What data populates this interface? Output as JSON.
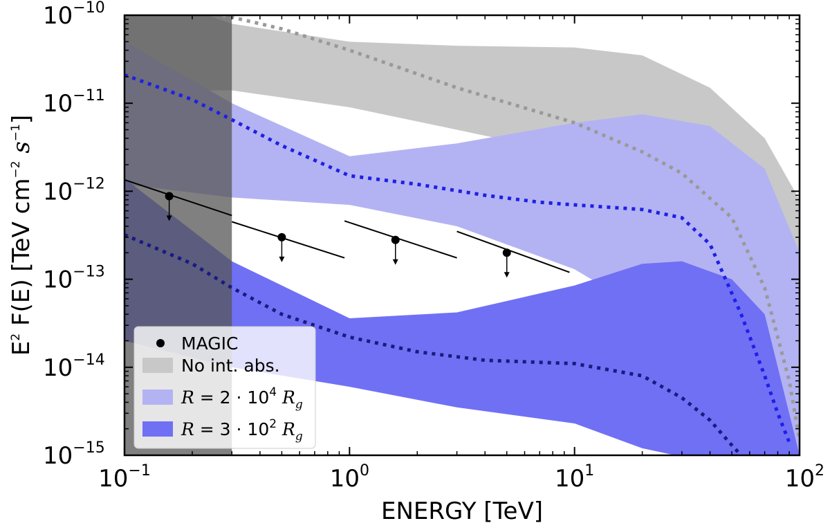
{
  "chart_data": {
    "type": "line",
    "x_scale": "log",
    "y_scale": "log",
    "xlim": [
      0.1,
      100
    ],
    "ylim": [
      1e-15,
      1e-10
    ],
    "xlabel": "ENERGY [TeV]",
    "ylabel_parts": {
      "e": "E",
      "e_exp": "2",
      "rest": " F(E) [TeV cm",
      "cm_exp": "−2",
      "s": " s",
      "s_exp": "−1",
      "end": "]"
    },
    "x_ticks": [
      {
        "value": 0.1,
        "base": "10",
        "exp": "−1"
      },
      {
        "value": 1,
        "base": "10",
        "exp": "0"
      },
      {
        "value": 10,
        "base": "10",
        "exp": "1"
      },
      {
        "value": 100,
        "base": "10",
        "exp": "2"
      }
    ],
    "y_ticks": [
      {
        "value": 1e-10,
        "base": "10",
        "exp": "−10"
      },
      {
        "value": 1e-11,
        "base": "10",
        "exp": "−11"
      },
      {
        "value": 1e-12,
        "base": "10",
        "exp": "−12"
      },
      {
        "value": 1e-13,
        "base": "10",
        "exp": "−13"
      },
      {
        "value": 1e-14,
        "base": "10",
        "exp": "−14"
      },
      {
        "value": 1e-15,
        "base": "10",
        "exp": "−15"
      }
    ],
    "excluded_region": {
      "x_range": [
        0.1,
        0.3
      ],
      "color": "#555555"
    },
    "bands": [
      {
        "name": "No int. abs.",
        "color": "#c8c8c8",
        "upper": [
          [
            0.1,
            2.1e-10
          ],
          [
            0.3,
            8e-11
          ],
          [
            1.0,
            5e-11
          ],
          [
            3,
            4.5e-11
          ],
          [
            10,
            4.3e-11
          ],
          [
            20,
            3.5e-11
          ],
          [
            40,
            1.5e-11
          ],
          [
            70,
            4e-12
          ],
          [
            100,
            8e-13
          ]
        ],
        "lower": [
          [
            0.1,
            1.4e-11
          ],
          [
            0.3,
            1.4e-11
          ],
          [
            1.0,
            9e-12
          ],
          [
            3,
            5e-12
          ],
          [
            10,
            2.6e-12
          ],
          [
            20,
            1.6e-12
          ],
          [
            40,
            7e-13
          ],
          [
            70,
            1.2e-13
          ],
          [
            100,
            1e-15
          ]
        ]
      },
      {
        "name": "R = 2·10^4 R_g",
        "color": "#b3b3f3",
        "upper": [
          [
            0.1,
            5e-11
          ],
          [
            0.3,
            1e-11
          ],
          [
            1.0,
            2.5e-12
          ],
          [
            3,
            3.5e-12
          ],
          [
            10,
            6e-12
          ],
          [
            20,
            7.5e-12
          ],
          [
            40,
            5.5e-12
          ],
          [
            70,
            1.8e-12
          ],
          [
            100,
            2e-13
          ]
        ],
        "lower": [
          [
            0.1,
            1.2e-12
          ],
          [
            0.3,
            8.5e-13
          ],
          [
            1.0,
            7e-13
          ],
          [
            3,
            4e-13
          ],
          [
            10,
            1.3e-13
          ],
          [
            20,
            4.5e-14
          ],
          [
            40,
            1e-14
          ],
          [
            70,
            2e-15
          ],
          [
            100,
            1e-15
          ]
        ]
      },
      {
        "name": "R = 3·10^2 R_g",
        "color": "#7070f5",
        "upper": [
          [
            0.1,
            1.4e-12
          ],
          [
            0.3,
            1.6e-13
          ],
          [
            1.0,
            3.6e-14
          ],
          [
            3,
            4.2e-14
          ],
          [
            10,
            8.5e-14
          ],
          [
            20,
            1.5e-13
          ],
          [
            30,
            1.6e-13
          ],
          [
            50,
            1e-13
          ],
          [
            70,
            4e-14
          ],
          [
            100,
            1e-15
          ]
        ],
        "lower": [
          [
            0.1,
            2e-14
          ],
          [
            0.3,
            1e-14
          ],
          [
            1.0,
            6e-15
          ],
          [
            3,
            3.5e-15
          ],
          [
            10,
            2.3e-15
          ],
          [
            20,
            1.2e-15
          ],
          [
            28,
            1e-15
          ],
          [
            100,
            1e-15
          ]
        ]
      }
    ],
    "curves": [
      {
        "name": "no-int-abs-median",
        "color": "#999999",
        "points": [
          [
            0.1,
            1.6e-10
          ],
          [
            0.3,
            9.5e-11
          ],
          [
            0.5,
            7e-11
          ],
          [
            1.0,
            4e-11
          ],
          [
            3,
            1.5e-11
          ],
          [
            10,
            6e-12
          ],
          [
            20,
            2.8e-12
          ],
          [
            30,
            1.6e-12
          ],
          [
            50,
            5e-13
          ],
          [
            70,
            8e-14
          ],
          [
            90,
            7e-15
          ],
          [
            100,
            1.5e-15
          ]
        ]
      },
      {
        "name": "r-2e4-median",
        "color": "#1f1fe6",
        "points": [
          [
            0.1,
            2.1e-11
          ],
          [
            0.2,
            1.1e-11
          ],
          [
            0.3,
            6.5e-12
          ],
          [
            0.5,
            3.3e-12
          ],
          [
            1.0,
            1.5e-12
          ],
          [
            2,
            1.2e-12
          ],
          [
            4,
            9e-13
          ],
          [
            7,
            7.5e-13
          ],
          [
            10,
            7e-13
          ],
          [
            20,
            6.2e-13
          ],
          [
            30,
            5e-13
          ],
          [
            40,
            2.5e-13
          ],
          [
            55,
            4e-14
          ],
          [
            70,
            8e-15
          ],
          [
            80,
            3e-15
          ],
          [
            90,
            1.4e-15
          ]
        ]
      },
      {
        "name": "r-3e2-median",
        "color": "#1a1a80",
        "points": [
          [
            0.1,
            3.2e-13
          ],
          [
            0.2,
            1.5e-13
          ],
          [
            0.3,
            8e-14
          ],
          [
            0.5,
            4e-14
          ],
          [
            1.0,
            2.2e-14
          ],
          [
            2,
            1.5e-14
          ],
          [
            4,
            1.2e-14
          ],
          [
            10,
            1.1e-14
          ],
          [
            20,
            8e-15
          ],
          [
            30,
            4.5e-15
          ],
          [
            40,
            2.5e-15
          ],
          [
            50,
            1.3e-15
          ],
          [
            55,
            1e-15
          ]
        ]
      }
    ],
    "magic_points": [
      {
        "x": 0.158,
        "y": 8.8e-13
      },
      {
        "x": 0.5,
        "y": 3e-13
      },
      {
        "x": 1.6,
        "y": 2.8e-13
      },
      {
        "x": 5.0,
        "y": 2e-13
      }
    ],
    "magic_segments": [
      {
        "x": [
          0.1,
          0.3
        ],
        "y": [
          1.35e-12,
          5.3e-13
        ]
      },
      {
        "x": 0.3,
        "x_end": 0.95,
        "y": [
          4.5e-13,
          1.75e-13
        ]
      },
      {
        "x": 0.95,
        "x_end": 3.0,
        "y": [
          4.6e-13,
          1.75e-13
        ]
      },
      {
        "x": 3.0,
        "x_end": 9.5,
        "y": [
          3.5e-13,
          1.2e-13
        ]
      }
    ],
    "legend": {
      "position": "lower-left",
      "entries": [
        {
          "kind": "marker",
          "label": "MAGIC",
          "color": "#000000"
        },
        {
          "kind": "patch",
          "label": "No int. abs.",
          "color": "#c8c8c8"
        },
        {
          "kind": "patch",
          "label_parts": {
            "r": "R",
            "eq": " = 2 · 10",
            "exp": "4",
            "sp": " ",
            "r2": "R",
            "sub": "g"
          },
          "color": "#b3b3f3"
        },
        {
          "kind": "patch",
          "label_parts": {
            "r": "R",
            "eq": " = 3 · 10",
            "exp": "2",
            "sp": " ",
            "r2": "R",
            "sub": "g"
          },
          "color": "#7070f5"
        }
      ]
    }
  }
}
